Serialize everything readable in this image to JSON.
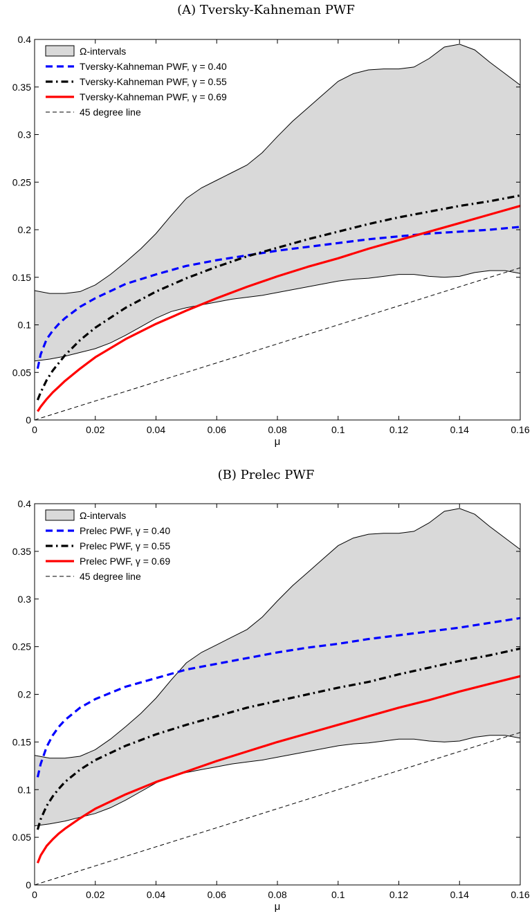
{
  "chart_data": [
    {
      "type": "line",
      "title": "(A) Tversky-Kahneman PWF",
      "xlabel": "μ",
      "ylabel": "",
      "xlim": [
        0,
        0.16
      ],
      "ylim": [
        0,
        0.4
      ],
      "xticks": [
        "0",
        "0.02",
        "0.04",
        "0.06",
        "0.08",
        "0.1",
        "0.12",
        "0.14",
        "0.16"
      ],
      "yticks": [
        "0",
        "0.05",
        "0.1",
        "0.15",
        "0.2",
        "0.25",
        "0.3",
        "0.35",
        "0.4"
      ],
      "legend_position": "top-left",
      "grid": false,
      "band": {
        "name": "Ω-intervals",
        "color": "#d9d9d9",
        "x": [
          0,
          0.005,
          0.01,
          0.015,
          0.02,
          0.025,
          0.03,
          0.035,
          0.04,
          0.045,
          0.05,
          0.055,
          0.06,
          0.065,
          0.07,
          0.075,
          0.08,
          0.085,
          0.09,
          0.095,
          0.1,
          0.105,
          0.11,
          0.115,
          0.12,
          0.125,
          0.13,
          0.135,
          0.14,
          0.145,
          0.15,
          0.155,
          0.16
        ],
        "upper": [
          0.136,
          0.133,
          0.133,
          0.135,
          0.142,
          0.153,
          0.166,
          0.18,
          0.196,
          0.215,
          0.233,
          0.244,
          0.252,
          0.26,
          0.268,
          0.281,
          0.298,
          0.314,
          0.328,
          0.342,
          0.356,
          0.364,
          0.368,
          0.369,
          0.369,
          0.371,
          0.38,
          0.392,
          0.395,
          0.389,
          0.376,
          0.364,
          0.352
        ],
        "lower": [
          0.062,
          0.064,
          0.067,
          0.071,
          0.075,
          0.081,
          0.089,
          0.098,
          0.107,
          0.114,
          0.118,
          0.121,
          0.124,
          0.127,
          0.129,
          0.131,
          0.134,
          0.137,
          0.14,
          0.143,
          0.146,
          0.148,
          0.149,
          0.151,
          0.153,
          0.153,
          0.151,
          0.15,
          0.151,
          0.155,
          0.157,
          0.157,
          0.154
        ]
      },
      "series": [
        {
          "name": "Tversky-Kahneman PWF, γ = 0.40",
          "color": "#0000ff",
          "style": "dashed",
          "x": [
            0.001,
            0.002,
            0.004,
            0.006,
            0.008,
            0.01,
            0.015,
            0.02,
            0.03,
            0.04,
            0.05,
            0.06,
            0.07,
            0.08,
            0.09,
            0.1,
            0.11,
            0.12,
            0.13,
            0.14,
            0.15,
            0.16
          ],
          "y": [
            0.054,
            0.069,
            0.085,
            0.094,
            0.101,
            0.107,
            0.119,
            0.128,
            0.143,
            0.153,
            0.162,
            0.168,
            0.173,
            0.178,
            0.182,
            0.186,
            0.19,
            0.193,
            0.196,
            0.198,
            0.2,
            0.203
          ]
        },
        {
          "name": "Tversky-Kahneman PWF, γ = 0.55",
          "color": "#000000",
          "style": "dashdot",
          "x": [
            0.001,
            0.002,
            0.004,
            0.006,
            0.008,
            0.01,
            0.015,
            0.02,
            0.03,
            0.04,
            0.05,
            0.06,
            0.07,
            0.08,
            0.09,
            0.1,
            0.11,
            0.12,
            0.13,
            0.14,
            0.15,
            0.16
          ],
          "y": [
            0.021,
            0.029,
            0.042,
            0.052,
            0.06,
            0.068,
            0.084,
            0.097,
            0.118,
            0.135,
            0.149,
            0.161,
            0.172,
            0.181,
            0.19,
            0.198,
            0.206,
            0.213,
            0.219,
            0.225,
            0.23,
            0.236
          ]
        },
        {
          "name": "Tversky-Kahneman PWF, γ = 0.69",
          "color": "#ff0000",
          "style": "solid",
          "x": [
            0.001,
            0.002,
            0.004,
            0.006,
            0.008,
            0.01,
            0.015,
            0.02,
            0.03,
            0.04,
            0.05,
            0.06,
            0.07,
            0.08,
            0.09,
            0.1,
            0.11,
            0.12,
            0.13,
            0.14,
            0.15,
            0.16
          ],
          "y": [
            0.009,
            0.014,
            0.022,
            0.029,
            0.035,
            0.041,
            0.054,
            0.066,
            0.085,
            0.101,
            0.115,
            0.128,
            0.14,
            0.151,
            0.161,
            0.17,
            0.18,
            0.189,
            0.198,
            0.207,
            0.216,
            0.225
          ]
        },
        {
          "name": "45 degree line",
          "color": "#000000",
          "style": "thin-dashed",
          "x": [
            0,
            0.16
          ],
          "y": [
            0,
            0.16
          ]
        }
      ]
    },
    {
      "type": "line",
      "title": "(B) Prelec PWF",
      "xlabel": "μ",
      "ylabel": "",
      "xlim": [
        0,
        0.16
      ],
      "ylim": [
        0,
        0.4
      ],
      "xticks": [
        "0",
        "0.02",
        "0.04",
        "0.06",
        "0.08",
        "0.1",
        "0.12",
        "0.14",
        "0.16"
      ],
      "yticks": [
        "0",
        "0.05",
        "0.1",
        "0.15",
        "0.2",
        "0.25",
        "0.3",
        "0.35",
        "0.4"
      ],
      "legend_position": "top-left",
      "grid": false,
      "band": {
        "name": "Ω-intervals",
        "color": "#d9d9d9",
        "x": [
          0,
          0.005,
          0.01,
          0.015,
          0.02,
          0.025,
          0.03,
          0.035,
          0.04,
          0.045,
          0.05,
          0.055,
          0.06,
          0.065,
          0.07,
          0.075,
          0.08,
          0.085,
          0.09,
          0.095,
          0.1,
          0.105,
          0.11,
          0.115,
          0.12,
          0.125,
          0.13,
          0.135,
          0.14,
          0.145,
          0.15,
          0.155,
          0.16
        ],
        "upper": [
          0.136,
          0.133,
          0.133,
          0.135,
          0.142,
          0.153,
          0.166,
          0.18,
          0.196,
          0.215,
          0.233,
          0.244,
          0.252,
          0.26,
          0.268,
          0.281,
          0.298,
          0.314,
          0.328,
          0.342,
          0.356,
          0.364,
          0.368,
          0.369,
          0.369,
          0.371,
          0.38,
          0.392,
          0.395,
          0.389,
          0.376,
          0.364,
          0.352
        ],
        "lower": [
          0.062,
          0.064,
          0.067,
          0.071,
          0.075,
          0.081,
          0.089,
          0.098,
          0.107,
          0.114,
          0.118,
          0.121,
          0.124,
          0.127,
          0.129,
          0.131,
          0.134,
          0.137,
          0.14,
          0.143,
          0.146,
          0.148,
          0.149,
          0.151,
          0.153,
          0.153,
          0.151,
          0.15,
          0.151,
          0.155,
          0.157,
          0.157,
          0.154
        ]
      },
      "series": [
        {
          "name": "Prelec PWF, γ = 0.40",
          "color": "#0000ff",
          "style": "dashed",
          "x": [
            0.001,
            0.002,
            0.004,
            0.006,
            0.008,
            0.01,
            0.015,
            0.02,
            0.03,
            0.04,
            0.05,
            0.06,
            0.07,
            0.08,
            0.09,
            0.1,
            0.11,
            0.12,
            0.13,
            0.14,
            0.15,
            0.16
          ],
          "y": [
            0.113,
            0.127,
            0.145,
            0.157,
            0.166,
            0.173,
            0.186,
            0.195,
            0.208,
            0.217,
            0.226,
            0.232,
            0.238,
            0.244,
            0.249,
            0.253,
            0.258,
            0.262,
            0.266,
            0.27,
            0.275,
            0.28
          ]
        },
        {
          "name": "Prelec PWF, γ = 0.55",
          "color": "#000000",
          "style": "dashdot",
          "x": [
            0.001,
            0.002,
            0.004,
            0.006,
            0.008,
            0.01,
            0.015,
            0.02,
            0.03,
            0.04,
            0.05,
            0.06,
            0.07,
            0.08,
            0.09,
            0.1,
            0.11,
            0.12,
            0.13,
            0.14,
            0.15,
            0.16
          ],
          "y": [
            0.058,
            0.069,
            0.083,
            0.093,
            0.101,
            0.108,
            0.121,
            0.131,
            0.146,
            0.158,
            0.168,
            0.177,
            0.186,
            0.193,
            0.2,
            0.207,
            0.213,
            0.221,
            0.228,
            0.235,
            0.241,
            0.248
          ]
        },
        {
          "name": "Prelec PWF, γ = 0.69",
          "color": "#ff0000",
          "style": "solid",
          "x": [
            0.001,
            0.002,
            0.004,
            0.006,
            0.008,
            0.01,
            0.015,
            0.02,
            0.03,
            0.04,
            0.05,
            0.06,
            0.07,
            0.08,
            0.09,
            0.1,
            0.11,
            0.12,
            0.13,
            0.14,
            0.15,
            0.16
          ],
          "y": [
            0.023,
            0.031,
            0.041,
            0.048,
            0.054,
            0.059,
            0.07,
            0.08,
            0.095,
            0.108,
            0.119,
            0.13,
            0.14,
            0.15,
            0.159,
            0.168,
            0.177,
            0.186,
            0.194,
            0.203,
            0.211,
            0.219
          ]
        },
        {
          "name": "45 degree line",
          "color": "#000000",
          "style": "thin-dashed",
          "x": [
            0,
            0.16
          ],
          "y": [
            0,
            0.16
          ]
        }
      ]
    }
  ]
}
